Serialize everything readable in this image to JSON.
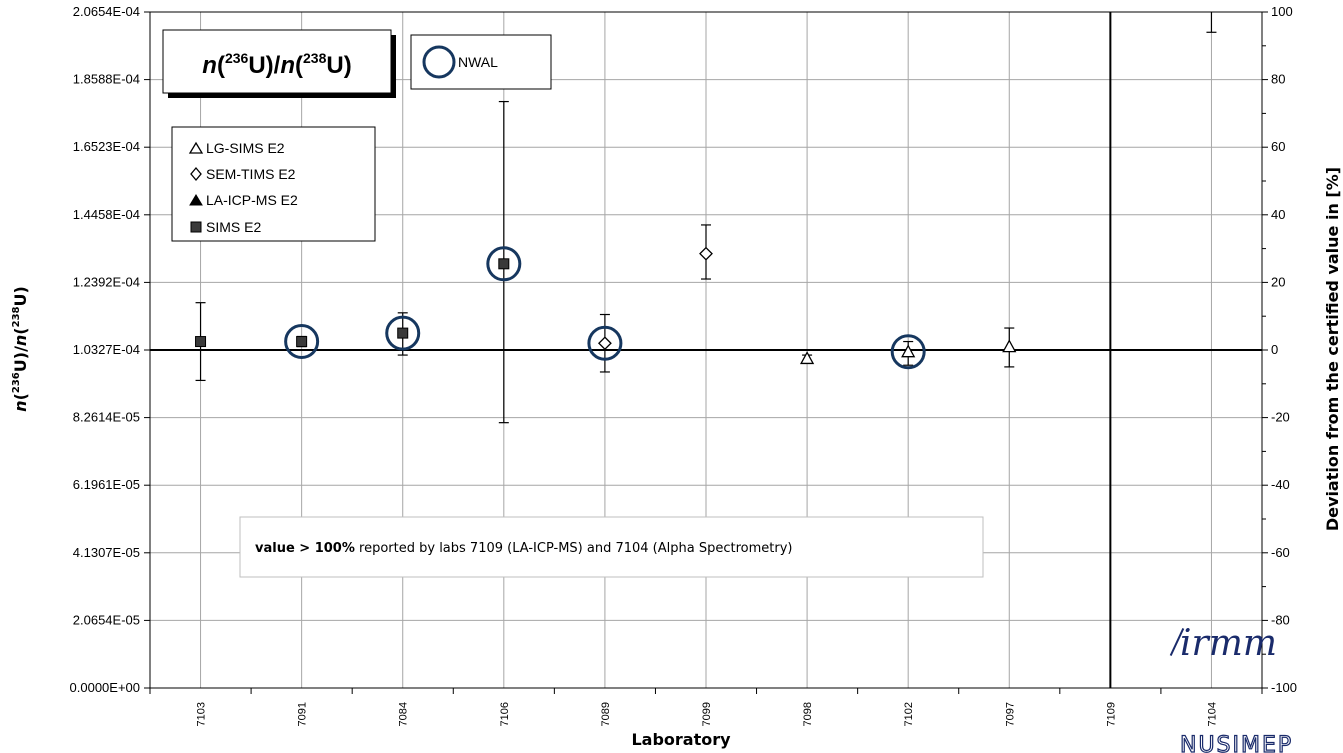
{
  "chart_data": {
    "type": "scatter",
    "categories": [
      "7103",
      "7091",
      "7084",
      "7106",
      "7089",
      "7099",
      "7098",
      "7102",
      "7097",
      "7109",
      "7104"
    ],
    "xlabel": "Laboratory",
    "ylabel_left": {
      "main": "n(236U)/n(238U)",
      "parts": [
        "n",
        "(",
        "236",
        "U)/",
        "n",
        "(",
        "238",
        "U)"
      ]
    },
    "ylabel_right": "Deviation from the certified value in [%]",
    "left_axis": {
      "ylim": [
        0,
        0.00020654
      ],
      "ticks": [
        "0.0000E+00",
        "2.0654E-05",
        "4.1307E-05",
        "6.1961E-05",
        "8.2614E-05",
        "1.0327E-04",
        "1.2392E-04",
        "1.4458E-04",
        "1.6523E-04",
        "1.8588E-04",
        "2.0654E-04"
      ]
    },
    "right_axis": {
      "ylim": [
        -100,
        100
      ],
      "ticks": [
        "-100",
        "-80",
        "-60",
        "-40",
        "-20",
        "0",
        "20",
        "40",
        "60",
        "80",
        "100"
      ]
    },
    "reference_line": 0,
    "grid": true,
    "series": [
      {
        "name": "LG-SIMS E2",
        "marker": "triangle-open",
        "points": [
          {
            "category": "7098",
            "deviation": -2.5,
            "err_low": -3.5,
            "err_high": -1.5
          },
          {
            "category": "7102",
            "deviation": -0.5,
            "err_low": -4.5,
            "err_high": 2.5
          },
          {
            "category": "7097",
            "deviation": 1,
            "err_low": -5,
            "err_high": 6.5
          }
        ]
      },
      {
        "name": "SEM-TIMS E2",
        "marker": "diamond-open",
        "points": [
          {
            "category": "7089",
            "deviation": 2,
            "err_low": -6.5,
            "err_high": 10.5
          },
          {
            "category": "7099",
            "deviation": 28.5,
            "err_low": 21,
            "err_high": 37
          }
        ]
      },
      {
        "name": "LA-ICP-MS E2",
        "marker": "triangle-filled",
        "points": []
      },
      {
        "name": "SIMS E2",
        "marker": "square-filled",
        "points": [
          {
            "category": "7103",
            "deviation": 2.5,
            "err_low": -9,
            "err_high": 14
          },
          {
            "category": "7091",
            "deviation": 2.5,
            "err_low": 1,
            "err_high": 4
          },
          {
            "category": "7084",
            "deviation": 5,
            "err_low": -1.5,
            "err_high": 11
          },
          {
            "category": "7106",
            "deviation": 25.5,
            "err_low": -21.5,
            "err_high": 73.5
          },
          {
            "category": "7104",
            "deviation": 102,
            "err_low": 94,
            "err_high": 110,
            "marker_hidden": true
          }
        ]
      }
    ],
    "nwal_circles": [
      "7091",
      "7084",
      "7106",
      "7089",
      "7102"
    ],
    "vertical_lines": [
      "7109"
    ]
  },
  "legend_items": [
    "LG-SIMS E2",
    "SEM-TIMS E2",
    "LA-ICP-MS E2",
    "SIMS E2"
  ],
  "nwal_label": "NWAL",
  "title": {
    "parts": [
      "n",
      "(",
      "236",
      "U)/",
      "n",
      "(",
      "238",
      "U)"
    ]
  },
  "note": {
    "bold": "value > 100%",
    "rest": " reported by labs 7109 (LA-ICP-MS) and 7104 (Alpha Spectrometry)"
  },
  "logo": "irmm",
  "watermark": "NUSIMEP",
  "colors": {
    "nwal_circle": "#16375f",
    "grid": "#a6a6a6",
    "marker_fill": "#3a3a3a",
    "logo": "#1a2b6b"
  }
}
